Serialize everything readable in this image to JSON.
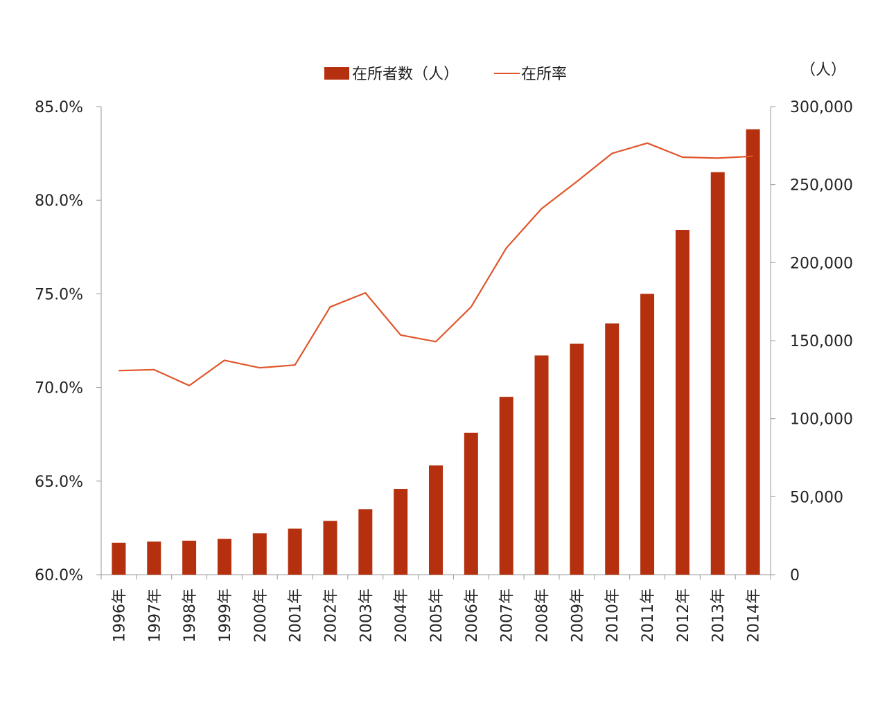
{
  "chart_data": {
    "type": "bar",
    "categories": [
      "1996年",
      "1997年",
      "1998年",
      "1999年",
      "2000年",
      "2001年",
      "2002年",
      "2003年",
      "2004年",
      "2005年",
      "2006年",
      "2007年",
      "2008年",
      "2009年",
      "2010年",
      "2011年",
      "2012年",
      "2013年",
      "2014年"
    ],
    "series": [
      {
        "name": "在所者数（人）",
        "type": "bar",
        "axis": "right",
        "color": "#B5300F",
        "values": [
          20500,
          21200,
          21800,
          23000,
          26500,
          29500,
          34500,
          42000,
          55000,
          70000,
          91000,
          114000,
          140500,
          148000,
          161000,
          180000,
          221000,
          258000,
          285500
        ]
      },
      {
        "name": "在所率",
        "type": "line",
        "axis": "left",
        "color": "#E0552A",
        "values": [
          70.9,
          70.95,
          70.1,
          71.45,
          71.05,
          71.2,
          74.3,
          75.05,
          72.8,
          72.45,
          74.3,
          77.45,
          79.55,
          81.0,
          82.5,
          83.05,
          82.3,
          82.25,
          82.35
        ]
      }
    ],
    "y_left": {
      "ylim": [
        60.0,
        85.0
      ],
      "ticks": [
        "60.0%",
        "65.0%",
        "70.0%",
        "75.0%",
        "80.0%",
        "85.0%"
      ],
      "tick_values": [
        60,
        65,
        70,
        75,
        80,
        85
      ]
    },
    "y_right": {
      "unit_label": "（人）",
      "ylim": [
        0,
        300000
      ],
      "ticks": [
        "0",
        "50,000",
        "100,000",
        "150,000",
        "200,000",
        "250,000",
        "300,000"
      ],
      "tick_values": [
        0,
        50000,
        100000,
        150000,
        200000,
        250000,
        300000
      ]
    },
    "legend": {
      "placement": "top-center",
      "items": [
        "在所者数（人）",
        "在所率"
      ]
    },
    "grid": false
  }
}
